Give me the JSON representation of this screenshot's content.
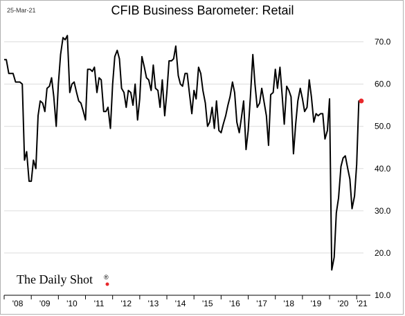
{
  "header": {
    "date": "25-Mar-21",
    "title": "CFIB Business Barometer: Retail"
  },
  "brand": {
    "name": "The Daily Shot",
    "mark": "®",
    "dot_color": "#e8282b"
  },
  "chart_data": {
    "type": "line",
    "title": "CFIB Business Barometer: Retail",
    "xlabel": "",
    "ylabel": "",
    "ylim": [
      10,
      75
    ],
    "xlim": [
      2008.0,
      2021.25
    ],
    "y_ticks": [
      10,
      20,
      30,
      40,
      50,
      60,
      70
    ],
    "y_tick_labels": [
      "10.0",
      "20.0",
      "30.0",
      "40.0",
      "50.0",
      "60.0",
      "70.0"
    ],
    "y_axis_position": "right",
    "x_tick_labels": [
      "'08",
      "'09",
      "'10",
      "'11",
      "'12",
      "'13",
      "'14",
      "'15",
      "'16",
      "'17",
      "'18",
      "'19",
      "'20",
      "'21"
    ],
    "grid": "horizontal",
    "line_color": "#000000",
    "last_point_color": "#e8282b",
    "series": [
      {
        "x": [
          2008.0,
          2008.08,
          2008.17,
          2008.25,
          2008.33,
          2008.42,
          2008.5,
          2008.58,
          2008.67,
          2008.75,
          2008.83,
          2008.92,
          2009.0,
          2009.08,
          2009.17,
          2009.25,
          2009.33,
          2009.42,
          2009.5,
          2009.58,
          2009.67,
          2009.75,
          2009.83,
          2009.92,
          2010.0,
          2010.08,
          2010.17,
          2010.25,
          2010.33,
          2010.42,
          2010.5,
          2010.58,
          2010.67,
          2010.75,
          2010.83,
          2010.92,
          2011.0,
          2011.08,
          2011.17,
          2011.25,
          2011.33,
          2011.42,
          2011.5,
          2011.58,
          2011.67,
          2011.75,
          2011.83,
          2011.92,
          2012.0,
          2012.08,
          2012.17,
          2012.25,
          2012.33,
          2012.42,
          2012.5,
          2012.58,
          2012.67,
          2012.75,
          2012.83,
          2012.92,
          2013.0,
          2013.08,
          2013.17,
          2013.25,
          2013.33,
          2013.42,
          2013.5,
          2013.58,
          2013.67,
          2013.75,
          2013.83,
          2013.92,
          2014.0,
          2014.08,
          2014.17,
          2014.25,
          2014.33,
          2014.42,
          2014.5,
          2014.58,
          2014.67,
          2014.75,
          2014.83,
          2014.92,
          2015.0,
          2015.08,
          2015.17,
          2015.25,
          2015.33,
          2015.42,
          2015.5,
          2015.58,
          2015.67,
          2015.75,
          2015.83,
          2015.92,
          2016.0,
          2016.08,
          2016.17,
          2016.25,
          2016.33,
          2016.42,
          2016.5,
          2016.58,
          2016.67,
          2016.75,
          2016.83,
          2016.92,
          2017.0,
          2017.08,
          2017.17,
          2017.25,
          2017.33,
          2017.42,
          2017.5,
          2017.58,
          2017.67,
          2017.75,
          2017.83,
          2017.92,
          2018.0,
          2018.08,
          2018.17,
          2018.25,
          2018.33,
          2018.42,
          2018.5,
          2018.58,
          2018.67,
          2018.75,
          2018.83,
          2018.92,
          2019.0,
          2019.08,
          2019.17,
          2019.25,
          2019.33,
          2019.42,
          2019.5,
          2019.58,
          2019.67,
          2019.75,
          2019.83,
          2019.92,
          2020.0,
          2020.08,
          2020.17,
          2020.25,
          2020.33,
          2020.42,
          2020.5,
          2020.58,
          2020.67,
          2020.75,
          2020.83,
          2020.92,
          2021.0,
          2021.08,
          2021.17
        ],
        "values": [
          65.8,
          65.8,
          62.5,
          62.5,
          62.5,
          60.5,
          60.5,
          60.5,
          60.0,
          42.0,
          44.0,
          37.0,
          37.0,
          42.0,
          40.0,
          52.5,
          56.0,
          55.5,
          53.5,
          59.0,
          59.5,
          61.5,
          57.0,
          50.0,
          60.0,
          67.0,
          71.0,
          70.5,
          71.5,
          58.0,
          60.0,
          60.5,
          58.0,
          56.0,
          55.5,
          53.5,
          51.5,
          63.5,
          63.5,
          63.0,
          64.0,
          58.0,
          61.5,
          61.0,
          53.5,
          53.5,
          54.5,
          49.5,
          60.0,
          66.5,
          68.0,
          66.0,
          59.0,
          58.0,
          54.5,
          58.5,
          58.0,
          55.0,
          60.0,
          51.5,
          56.5,
          66.5,
          64.0,
          61.5,
          61.0,
          58.5,
          64.5,
          59.0,
          58.5,
          54.5,
          61.0,
          52.5,
          58.0,
          65.5,
          65.5,
          66.0,
          69.0,
          62.0,
          60.0,
          59.5,
          62.5,
          62.5,
          58.0,
          53.0,
          58.5,
          56.5,
          64.0,
          62.5,
          58.5,
          55.5,
          50.0,
          51.0,
          54.5,
          49.5,
          56.0,
          49.0,
          48.5,
          50.5,
          52.5,
          55.0,
          57.0,
          60.5,
          58.0,
          51.0,
          48.5,
          52.0,
          56.0,
          44.5,
          49.0,
          57.0,
          67.0,
          60.0,
          54.5,
          55.5,
          59.0,
          56.0,
          52.5,
          45.5,
          57.5,
          58.0,
          63.5,
          59.0,
          64.0,
          57.5,
          50.5,
          59.5,
          58.5,
          57.0,
          43.5,
          50.5,
          56.0,
          59.0,
          56.5,
          53.5,
          54.5,
          61.0,
          57.0,
          51.0,
          53.0,
          52.5,
          53.0,
          53.0,
          47.0,
          49.0,
          56.5,
          16.0,
          19.0,
          29.5,
          33.0,
          40.5,
          42.5,
          43.0,
          40.0,
          37.5,
          30.5,
          33.5,
          41.0,
          56.0,
          56.0
        ]
      }
    ]
  }
}
